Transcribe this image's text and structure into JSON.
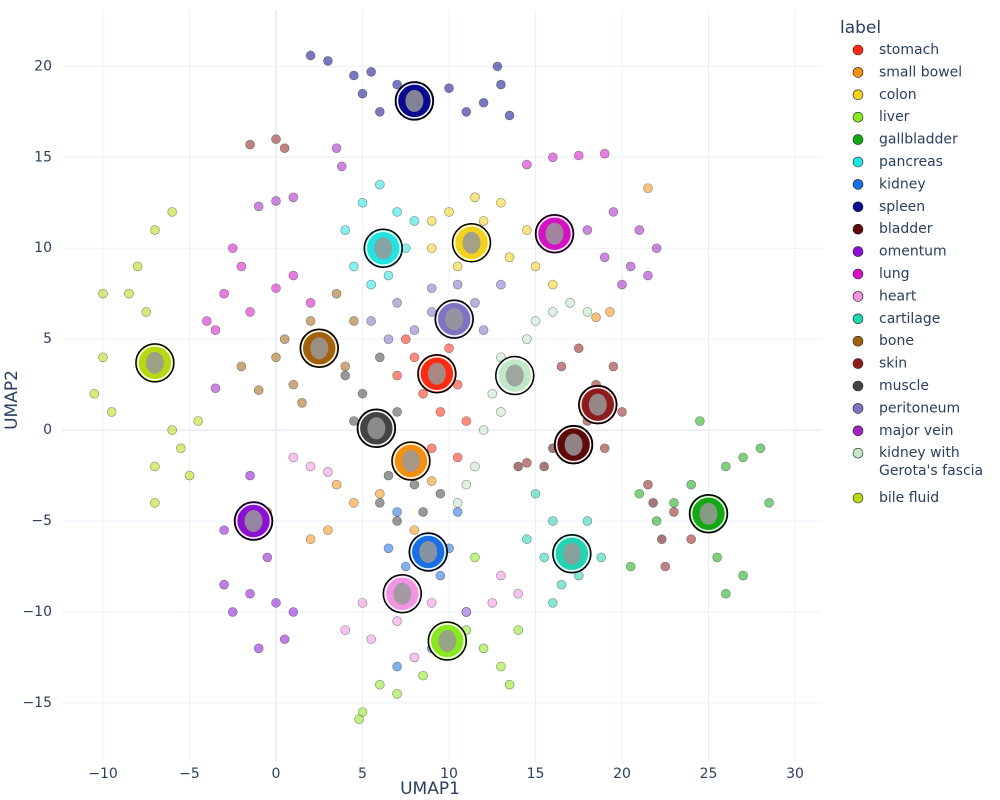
{
  "chart_data": {
    "type": "scatter",
    "xlabel": "UMAP1",
    "ylabel": "UMAP2",
    "legend_title": "label",
    "legend": "right",
    "grid": true,
    "xlim": [
      -12.37,
      31.56
    ],
    "ylim": [
      -18.25,
      23.1
    ],
    "xticks": [
      {
        "value": -10,
        "label": "−10"
      },
      {
        "value": -5,
        "label": "−5"
      },
      0,
      5,
      10,
      15,
      20,
      25,
      30
    ],
    "yticks": [
      {
        "value": -15,
        "label": "−15"
      },
      {
        "value": -10,
        "label": "−10"
      },
      {
        "value": -5,
        "label": "−5"
      },
      0,
      5,
      10,
      15,
      20
    ],
    "series": [
      {
        "name": "stomach",
        "color": "#ff2a12",
        "center": [
          9.3,
          3.1
        ],
        "x": [
          8,
          8.5,
          9.5,
          10,
          10.5,
          9,
          10.5,
          7.5,
          11,
          7
        ],
        "y": [
          4,
          2,
          1,
          4.5,
          2.5,
          -1,
          -1.5,
          5,
          0.5,
          3
        ]
      },
      {
        "name": "small bowel",
        "color": "#f58f10",
        "center": [
          7.8,
          -1.7
        ],
        "x": [
          7.5,
          8.5,
          6,
          4.5,
          3,
          2,
          8,
          3.5,
          18.5,
          19.3,
          21.5,
          -0.5,
          9
        ],
        "y": [
          -1,
          -2,
          -3.5,
          -4,
          -5.5,
          -6,
          -5.5,
          -3,
          6.2,
          6.5,
          13.3,
          -4.5,
          -2.8
        ]
      },
      {
        "name": "colon",
        "color": "#f2d21c",
        "center": [
          11.3,
          10.3
        ],
        "x": [
          9,
          10,
          11.5,
          13,
          14.5,
          12,
          10.5,
          13.5,
          15,
          9,
          16,
          12
        ],
        "y": [
          11.5,
          12,
          12.8,
          12.5,
          11,
          10,
          9,
          9.5,
          9,
          10,
          8,
          11.5
        ]
      },
      {
        "name": "liver",
        "color": "#8ae81e",
        "center": [
          9.9,
          -11.6
        ],
        "x": [
          6,
          5,
          7,
          8.5,
          10,
          11,
          12,
          13,
          14,
          13.5,
          8,
          11.5,
          4.8
        ],
        "y": [
          -14,
          -15.5,
          -14.5,
          -13.5,
          -12,
          -11,
          -12,
          -13,
          -11,
          -14,
          -8.5,
          -7,
          -15.9
        ]
      },
      {
        "name": "gallbladder",
        "color": "#14a814",
        "center": [
          25,
          -4.6
        ],
        "x": [
          22,
          23,
          24,
          25,
          26,
          27,
          28,
          25.5,
          26,
          27,
          20.5,
          24.5,
          28.5,
          21
        ],
        "y": [
          -5,
          -4,
          -3,
          -5,
          -2,
          -1.5,
          -1,
          -7,
          -9,
          -8,
          -7.5,
          0.5,
          -4,
          -3.5
        ]
      },
      {
        "name": "pancreas",
        "color": "#22e2e2",
        "center": [
          6.2,
          10
        ],
        "x": [
          4,
          5,
          6,
          7,
          6,
          5.5,
          7.5,
          8,
          4.5,
          6.5
        ],
        "y": [
          11,
          12.5,
          13.5,
          12,
          9.5,
          8,
          10,
          11.5,
          9,
          8.5
        ]
      },
      {
        "name": "kidney",
        "color": "#1a6fe2",
        "center": [
          8.8,
          -6.7
        ],
        "x": [
          7,
          8.5,
          10,
          7.5,
          9.5,
          6.5,
          10.5,
          8,
          7,
          9,
          11
        ],
        "y": [
          -4.5,
          -6,
          -6.5,
          -7.5,
          -8,
          -6.5,
          -4.5,
          -9,
          -13,
          -12,
          -10
        ]
      },
      {
        "name": "spleen",
        "color": "#0a0a8e",
        "center": [
          8,
          18.1
        ],
        "x": [
          2,
          3,
          4.5,
          5.5,
          7,
          8.5,
          10,
          11,
          12,
          13,
          12.8,
          13.5,
          6,
          5
        ],
        "y": [
          20.6,
          20.3,
          19.5,
          19.7,
          19,
          18.5,
          18.8,
          17.5,
          18,
          19,
          20,
          17.3,
          17.5,
          18.5
        ]
      },
      {
        "name": "bladder",
        "color": "#5e0a0a",
        "center": [
          17.2,
          -0.8
        ],
        "x": [
          15.5,
          16.5,
          17,
          17.5,
          16,
          21.8,
          22.3,
          14
        ],
        "y": [
          -2,
          -0.5,
          -1.5,
          0,
          -1,
          -4,
          -6,
          -2
        ]
      },
      {
        "name": "omentum",
        "color": "#8c10d2",
        "center": [
          -1.3,
          -5
        ],
        "x": [
          -2,
          -3,
          -1,
          -1.5,
          -2.5,
          -1.5,
          0,
          1,
          -1,
          0.5,
          -3,
          -0.5
        ],
        "y": [
          -5,
          -5.5,
          -4.5,
          -2.5,
          -10,
          -9,
          -9.5,
          -10,
          -12,
          -11.5,
          -8.5,
          -7
        ]
      },
      {
        "name": "lung",
        "color": "#d412c4",
        "center": [
          16.1,
          10.8
        ],
        "x": [
          -4,
          -3,
          -2,
          -1.5,
          0,
          1,
          2,
          -2.5,
          -3.5,
          14.5,
          16,
          17.5,
          19
        ],
        "y": [
          6,
          7.5,
          9,
          6.5,
          7.8,
          8.5,
          7,
          10,
          5.5,
          14.6,
          15,
          15.1,
          15.2
        ]
      },
      {
        "name": "heart",
        "color": "#f294e2",
        "center": [
          7.3,
          -9
        ],
        "x": [
          5,
          4,
          5.5,
          7,
          8,
          9,
          11,
          12.5,
          13,
          1,
          2,
          3,
          14
        ],
        "y": [
          -9.5,
          -11,
          -11.5,
          -10.5,
          -12.5,
          -9.5,
          -10,
          -9.5,
          -8,
          -1.5,
          -2,
          -2.3,
          -9
        ]
      },
      {
        "name": "cartilage",
        "color": "#22d4b4",
        "center": [
          17.1,
          -6.8
        ],
        "x": [
          15,
          16,
          17,
          18,
          15.5,
          16.5,
          17.5,
          14.5,
          18.8,
          16
        ],
        "y": [
          -3.5,
          -5,
          -6,
          -5,
          -7,
          -8.5,
          -8,
          -6,
          -7,
          -9.5
        ]
      },
      {
        "name": "bone",
        "color": "#a2620c",
        "center": [
          2.5,
          4.5
        ],
        "x": [
          -2,
          0,
          1,
          0.5,
          2,
          3,
          3.5,
          4.5,
          1.5,
          -1,
          4
        ],
        "y": [
          3.5,
          4,
          2.5,
          5,
          6,
          5,
          7.5,
          6,
          1.5,
          2.2,
          3.5
        ]
      },
      {
        "name": "skin",
        "color": "#8e1c1c",
        "center": [
          18.6,
          1.4
        ],
        "x": [
          -1.5,
          0,
          0.5,
          16.5,
          17.5,
          18.5,
          19.5,
          20,
          18,
          17,
          19,
          21.5,
          23,
          24,
          22.5,
          14.5
        ],
        "y": [
          15.7,
          16,
          15.5,
          3.5,
          4.5,
          2.5,
          3.5,
          1,
          0.5,
          -1.5,
          -1,
          -3,
          -4.5,
          -6,
          -7.5,
          -1.8
        ]
      },
      {
        "name": "muscle",
        "color": "#444444",
        "center": [
          5.8,
          0.1
        ],
        "x": [
          4,
          5,
          6,
          5.5,
          6.5,
          7,
          8,
          8.5,
          7,
          4.5,
          9.5,
          6
        ],
        "y": [
          3,
          2,
          4,
          0.5,
          -2.5,
          1,
          -3,
          -4.5,
          -5,
          0.5,
          -3.5,
          -4
        ]
      },
      {
        "name": "peritoneum",
        "color": "#8272c2",
        "center": [
          10.3,
          6.1
        ],
        "x": [
          5.5,
          7,
          8,
          9,
          10.3,
          11.5,
          12,
          10.5,
          13,
          6.5,
          9
        ],
        "y": [
          6,
          7,
          5.5,
          6.5,
          6.5,
          7,
          5.5,
          8,
          8,
          5,
          7.8
        ]
      },
      {
        "name": "major vein",
        "color": "#a322c2",
        "x": [
          18,
          19.5,
          21,
          22,
          20.5,
          19,
          20,
          21.5,
          0,
          -1,
          1,
          3.5,
          3.8,
          -3.5,
          16.5
        ],
        "y": [
          11,
          12,
          11,
          10,
          9,
          9.5,
          8,
          8.5,
          12.6,
          12.3,
          12.8,
          15.5,
          14.5,
          2.3,
          10.5
        ]
      },
      {
        "name": "kidney with\nGerota's fascia",
        "color": "#c2e8ca",
        "center": [
          13.8,
          3
        ],
        "x": [
          13,
          14,
          14.5,
          16,
          17,
          18,
          12.5,
          12,
          11.5,
          10.5,
          13,
          15,
          11
        ],
        "y": [
          4,
          3,
          5,
          6.5,
          7,
          6.5,
          2,
          0,
          -2,
          -4,
          1,
          6,
          -3
        ]
      },
      {
        "name": "bile fluid",
        "color": "#bad812",
        "center": [
          -7,
          3.7
        ],
        "x": [
          -7,
          -6,
          -8,
          -7.5,
          -8.5,
          -10,
          -10.5,
          -9.5,
          -6.5,
          -6,
          -5.5,
          -7,
          -7,
          -5,
          -4.5,
          -10
        ],
        "y": [
          11,
          12,
          9,
          6.5,
          7.5,
          4,
          2,
          1,
          4,
          0,
          -1,
          -2,
          -4,
          -2.5,
          0.5,
          7.5
        ]
      }
    ]
  }
}
